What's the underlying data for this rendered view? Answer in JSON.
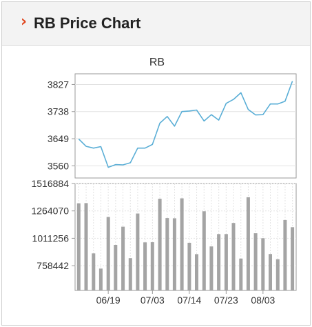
{
  "header": {
    "title": "RB Price Chart",
    "chevron": "›"
  },
  "colors": {
    "line": "#5aaed6",
    "bar": "#a4a4a4",
    "chevron": "#e0461e",
    "grid": "#e2e2e2",
    "axis": "#9a9a9a"
  },
  "chart_data": [
    {
      "type": "line",
      "title": "RB",
      "y_ticks": [
        "3827",
        "3738",
        "3649",
        "3560"
      ],
      "ylim": [
        3520,
        3862
      ],
      "values": [
        3648,
        3624,
        3618,
        3623,
        3555,
        3564,
        3563,
        3570,
        3618,
        3618,
        3630,
        3700,
        3722,
        3690,
        3738,
        3740,
        3743,
        3707,
        3728,
        3710,
        3765,
        3778,
        3800,
        3745,
        3727,
        3728,
        3763,
        3763,
        3772,
        3838
      ],
      "grid": true
    },
    {
      "type": "bar",
      "y_ticks": [
        "1516884",
        "1264070",
        "1011256",
        "758442"
      ],
      "ylim": [
        530000,
        1516884
      ],
      "values": [
        1334000,
        1336000,
        872000,
        732000,
        1208000,
        950000,
        1118000,
        828000,
        1240000,
        974000,
        975000,
        1376000,
        1198000,
        1196000,
        1380000,
        970000,
        865000,
        1260000,
        936000,
        1050000,
        1050000,
        1153000,
        824000,
        1390000,
        1058000,
        1012000,
        866000,
        818000,
        1180000,
        1114000
      ],
      "x_ticks": [
        {
          "label": "06/19",
          "index": 4
        },
        {
          "label": "07/03",
          "index": 10
        },
        {
          "label": "07/14",
          "index": 15
        },
        {
          "label": "07/23",
          "index": 20
        },
        {
          "label": "08/03",
          "index": 25
        }
      ],
      "grid": true
    }
  ]
}
